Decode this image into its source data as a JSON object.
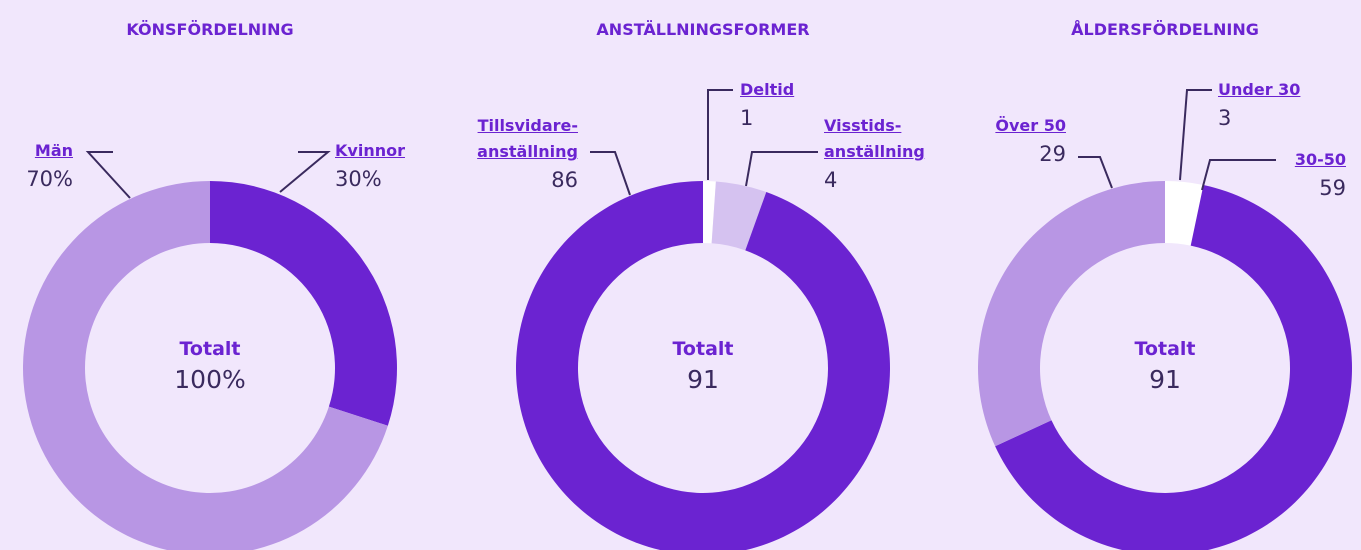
{
  "chart_data": [
    {
      "type": "donut",
      "title": "KÖNSFÖRDELNING",
      "center_label": "Totalt",
      "total": 100,
      "total_label": "100%",
      "categories": [
        "Kvinnor",
        "Män"
      ],
      "values": [
        30,
        70
      ],
      "value_labels": [
        "30%",
        "70%"
      ],
      "colors": [
        "#6b23d1",
        "#b896e4"
      ]
    },
    {
      "type": "donut",
      "title": "ANSTÄLLNINGSFORMER",
      "center_label": "Totalt",
      "total": 91,
      "categories": [
        "Deltid",
        "Visstids-anställning",
        "Tillsvidare-anställning"
      ],
      "values": [
        1,
        4,
        86
      ],
      "colors": [
        "#ffffff",
        "#d5c2f0",
        "#6b23d1"
      ]
    },
    {
      "type": "donut",
      "title": "ÅLDERSFÖRDELNING",
      "center_label": "Totalt",
      "total": 91,
      "categories": [
        "Under 30",
        "30-50",
        "Över 50"
      ],
      "values": [
        3,
        59,
        29
      ],
      "colors": [
        "#ffffff",
        "#6b23d1",
        "#b896e4"
      ]
    }
  ]
}
